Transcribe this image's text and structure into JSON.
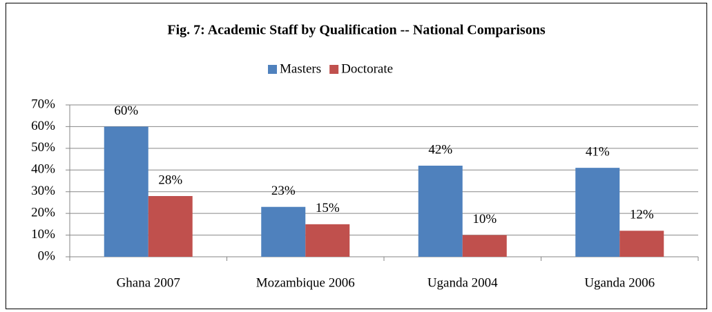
{
  "chart_data": {
    "type": "bar",
    "title": "Fig. 7: Academic Staff by Qualification -- National Comparisons",
    "categories": [
      "Ghana 2007",
      "Mozambique 2006",
      "Uganda 2004",
      "Uganda 2006"
    ],
    "series": [
      {
        "name": "Masters",
        "color": "#4f81bd",
        "values": [
          60,
          23,
          42,
          41
        ],
        "value_labels": [
          "60%",
          "23%",
          "42%",
          "41%"
        ]
      },
      {
        "name": "Doctorate",
        "color": "#c0504d",
        "values": [
          28,
          15,
          10,
          12
        ],
        "value_labels": [
          "28%",
          "15%",
          "10%",
          "12%"
        ]
      }
    ],
    "ylim": [
      0,
      70
    ],
    "yticks": [
      {
        "value": 0,
        "label": "0%"
      },
      {
        "value": 10,
        "label": "10%"
      },
      {
        "value": 20,
        "label": "20%"
      },
      {
        "value": 30,
        "label": "30%"
      },
      {
        "value": 40,
        "label": "40%"
      },
      {
        "value": 50,
        "label": "50%"
      },
      {
        "value": 60,
        "label": "60%"
      },
      {
        "value": 70,
        "label": "70%"
      }
    ],
    "grid": true,
    "legend": "top"
  }
}
